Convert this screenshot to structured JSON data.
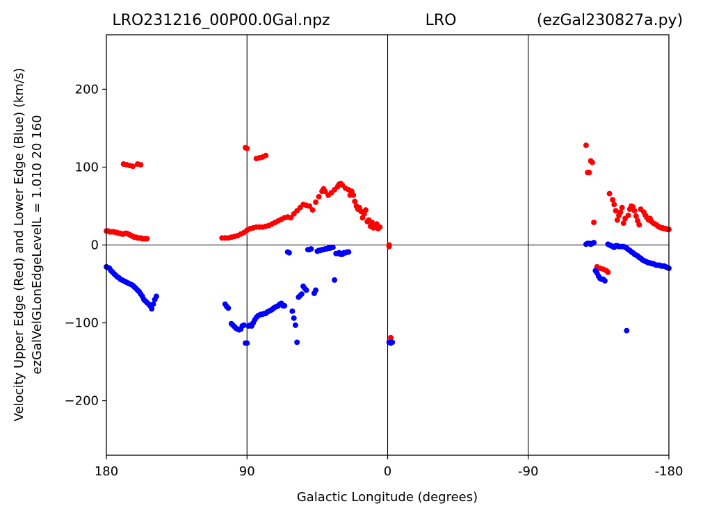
{
  "chart_data": {
    "type": "scatter",
    "title_parts": [
      "LRO231216_00P00.0Gal.npz",
      "LRO",
      "(ezGal230827a.py)"
    ],
    "xlabel": "Galactic Longitude (degrees)",
    "ylabel_lines": [
      "Velocity Upper Edge (Red) and Lower Edge (Blue)  (km/s)",
      "ezGalVelGLonEdgeLevelL = 1.010  20  160"
    ],
    "xlim": [
      180,
      -180
    ],
    "ylim": [
      -270,
      270
    ],
    "xticks": [
      180,
      90,
      0,
      -90,
      -180
    ],
    "xtick_labels": [
      "180",
      "90",
      "0",
      "-90",
      "-180"
    ],
    "yticks": [
      200,
      100,
      0,
      -100,
      -200
    ],
    "ytick_labels": [
      "200",
      "100",
      "0",
      "−100",
      "−200"
    ],
    "vlines": [
      90,
      0,
      -90
    ],
    "hlines": [
      0
    ],
    "grid": false,
    "colors": {
      "upper": "#ff0000",
      "lower": "#0000ff"
    },
    "series": [
      {
        "color": "#ff0000",
        "points": [
          [
            180,
            18
          ],
          [
            179,
            18
          ],
          [
            178,
            17
          ],
          [
            177,
            17
          ],
          [
            176,
            17
          ],
          [
            175,
            17
          ],
          [
            174,
            16
          ],
          [
            173,
            16
          ],
          [
            172,
            15
          ],
          [
            171,
            15
          ],
          [
            170,
            14
          ],
          [
            169,
            14
          ],
          [
            168,
            15
          ],
          [
            167,
            15
          ],
          [
            166,
            14
          ],
          [
            165,
            13
          ],
          [
            164,
            12
          ],
          [
            163,
            11
          ],
          [
            162,
            10
          ],
          [
            161,
            10
          ],
          [
            160,
            9
          ],
          [
            159,
            9
          ],
          [
            158,
            9
          ],
          [
            157,
            8
          ],
          [
            156,
            8
          ],
          [
            155,
            8
          ],
          [
            154,
            8
          ],
          [
            169,
            104
          ],
          [
            167,
            103
          ],
          [
            165,
            102
          ],
          [
            163,
            101
          ],
          [
            160,
            104
          ],
          [
            158,
            103
          ],
          [
            106,
            9
          ],
          [
            104,
            9
          ],
          [
            102,
            9
          ],
          [
            100,
            10
          ],
          [
            98,
            11
          ],
          [
            96,
            12
          ],
          [
            94,
            14
          ],
          [
            92,
            16
          ],
          [
            90,
            19
          ],
          [
            88,
            21
          ],
          [
            86,
            22
          ],
          [
            84,
            23
          ],
          [
            82,
            23
          ],
          [
            91,
            125
          ],
          [
            90,
            124
          ],
          [
            84,
            111
          ],
          [
            82,
            112
          ],
          [
            80,
            113
          ],
          [
            78,
            115
          ],
          [
            80,
            23
          ],
          [
            78,
            24
          ],
          [
            76,
            25
          ],
          [
            74,
            27
          ],
          [
            72,
            29
          ],
          [
            70,
            31
          ],
          [
            68,
            33
          ],
          [
            66,
            35
          ],
          [
            64,
            36
          ],
          [
            62,
            35
          ],
          [
            60,
            40
          ],
          [
            58,
            44
          ],
          [
            56,
            48
          ],
          [
            54,
            52
          ],
          [
            52,
            51
          ],
          [
            50,
            50
          ],
          [
            48,
            45
          ],
          [
            46,
            55
          ],
          [
            44,
            62
          ],
          [
            42,
            69
          ],
          [
            41,
            72
          ],
          [
            40,
            69
          ],
          [
            38,
            64
          ],
          [
            36,
            67
          ],
          [
            34,
            71
          ],
          [
            32,
            75
          ],
          [
            31,
            78
          ],
          [
            30,
            79
          ],
          [
            29,
            77
          ],
          [
            27,
            73
          ],
          [
            25,
            71
          ],
          [
            24,
            64
          ],
          [
            23,
            69
          ],
          [
            22,
            64
          ],
          [
            21,
            56
          ],
          [
            20,
            50
          ],
          [
            19,
            46
          ],
          [
            18,
            48
          ],
          [
            17,
            43
          ],
          [
            16,
            35
          ],
          [
            15,
            40
          ],
          [
            14,
            45
          ],
          [
            13,
            30
          ],
          [
            12,
            32
          ],
          [
            11,
            24
          ],
          [
            10,
            29
          ],
          [
            9,
            22
          ],
          [
            8,
            25
          ],
          [
            7,
            27
          ],
          [
            6,
            21
          ],
          [
            5,
            23
          ],
          [
            -1,
            0
          ],
          [
            -1,
            -2
          ],
          [
            -2,
            -119
          ],
          [
            -127,
            128
          ],
          [
            -128,
            93
          ],
          [
            -129,
            93
          ],
          [
            -130,
            108
          ],
          [
            -131,
            106
          ],
          [
            -132,
            29
          ],
          [
            -134,
            -28
          ],
          [
            -136,
            -30
          ],
          [
            -138,
            -31
          ],
          [
            -140,
            -33
          ],
          [
            -141,
            -35
          ],
          [
            -142,
            66
          ],
          [
            -144,
            58
          ],
          [
            -145,
            52
          ],
          [
            -146,
            44
          ],
          [
            -147,
            32
          ],
          [
            -148,
            38
          ],
          [
            -149,
            42
          ],
          [
            -150,
            48
          ],
          [
            -151,
            28
          ],
          [
            -152,
            34
          ],
          [
            -154,
            38
          ],
          [
            -155,
            46
          ],
          [
            -156,
            50
          ],
          [
            -157,
            49
          ],
          [
            -158,
            44
          ],
          [
            -159,
            37
          ],
          [
            -160,
            31
          ],
          [
            -161,
            26
          ],
          [
            -162,
            46
          ],
          [
            -164,
            42
          ],
          [
            -165,
            38
          ],
          [
            -166,
            35
          ],
          [
            -167,
            32
          ],
          [
            -168,
            34
          ],
          [
            -169,
            30
          ],
          [
            -170,
            28
          ],
          [
            -171,
            27
          ],
          [
            -172,
            26
          ],
          [
            -173,
            24
          ],
          [
            -174,
            23
          ],
          [
            -175,
            22
          ],
          [
            -176,
            22
          ],
          [
            -177,
            21
          ],
          [
            -178,
            21
          ],
          [
            -179,
            20
          ],
          [
            -180,
            20
          ]
        ]
      },
      {
        "color": "#0000ff",
        "points": [
          [
            180,
            -28
          ],
          [
            179,
            -29
          ],
          [
            178,
            -30
          ],
          [
            177,
            -33
          ],
          [
            176,
            -35
          ],
          [
            175,
            -37
          ],
          [
            174,
            -39
          ],
          [
            173,
            -41
          ],
          [
            172,
            -42
          ],
          [
            171,
            -44
          ],
          [
            170,
            -45
          ],
          [
            169,
            -46
          ],
          [
            168,
            -47
          ],
          [
            167,
            -48
          ],
          [
            166,
            -49
          ],
          [
            165,
            -50
          ],
          [
            164,
            -51
          ],
          [
            163,
            -52
          ],
          [
            162,
            -54
          ],
          [
            161,
            -56
          ],
          [
            160,
            -58
          ],
          [
            159,
            -60
          ],
          [
            158,
            -63
          ],
          [
            157,
            -66
          ],
          [
            156,
            -70
          ],
          [
            155,
            -72
          ],
          [
            154,
            -74
          ],
          [
            153,
            -76
          ],
          [
            152,
            -78
          ],
          [
            151,
            -82
          ],
          [
            150,
            -76
          ],
          [
            149,
            -70
          ],
          [
            148,
            -66
          ],
          [
            104,
            -76
          ],
          [
            103,
            -79
          ],
          [
            102,
            -81
          ],
          [
            100,
            -101
          ],
          [
            99,
            -103
          ],
          [
            98,
            -105
          ],
          [
            97,
            -107
          ],
          [
            96,
            -108
          ],
          [
            95,
            -109
          ],
          [
            94,
            -108
          ],
          [
            93,
            -104
          ],
          [
            92,
            -103
          ],
          [
            91,
            -126
          ],
          [
            90,
            -126
          ],
          [
            89,
            -104
          ],
          [
            88,
            -103
          ],
          [
            87,
            -104
          ],
          [
            86,
            -100
          ],
          [
            85,
            -96
          ],
          [
            84,
            -93
          ],
          [
            83,
            -91
          ],
          [
            82,
            -90
          ],
          [
            81,
            -89
          ],
          [
            80,
            -89
          ],
          [
            79,
            -88
          ],
          [
            78,
            -88
          ],
          [
            77,
            -86
          ],
          [
            76,
            -85
          ],
          [
            75,
            -84
          ],
          [
            74,
            -83
          ],
          [
            73,
            -81
          ],
          [
            72,
            -80
          ],
          [
            71,
            -79
          ],
          [
            70,
            -78
          ],
          [
            69,
            -76
          ],
          [
            68,
            -75
          ],
          [
            67,
            -78
          ],
          [
            66,
            -78
          ],
          [
            64,
            -9
          ],
          [
            63,
            -10
          ],
          [
            61,
            -85
          ],
          [
            60,
            -94
          ],
          [
            59,
            -103
          ],
          [
            58,
            -125
          ],
          [
            57,
            -67
          ],
          [
            56,
            -65
          ],
          [
            55,
            -63
          ],
          [
            54,
            -53
          ],
          [
            53,
            -56
          ],
          [
            52,
            -58
          ],
          [
            51,
            -6
          ],
          [
            50,
            -6
          ],
          [
            49,
            -5
          ],
          [
            47,
            -62
          ],
          [
            46,
            -58
          ],
          [
            45,
            -8
          ],
          [
            44,
            -7
          ],
          [
            43,
            -7
          ],
          [
            42,
            -6
          ],
          [
            41,
            -6
          ],
          [
            40,
            -5
          ],
          [
            39,
            -5
          ],
          [
            38,
            -4
          ],
          [
            37,
            -4
          ],
          [
            36,
            -3
          ],
          [
            35,
            -3
          ],
          [
            34,
            -45
          ],
          [
            33,
            -11
          ],
          [
            32,
            -11
          ],
          [
            31,
            -10
          ],
          [
            30,
            -12
          ],
          [
            29,
            -12
          ],
          [
            28,
            -10
          ],
          [
            27,
            -10
          ],
          [
            26,
            -9
          ],
          [
            25,
            -9
          ],
          [
            -1,
            -125
          ],
          [
            -2,
            -126
          ],
          [
            -3,
            -125
          ],
          [
            -127,
            1
          ],
          [
            -128,
            2
          ],
          [
            -129,
            2
          ],
          [
            -130,
            1
          ],
          [
            -131,
            2
          ],
          [
            -132,
            3
          ],
          [
            -133,
            -33
          ],
          [
            -134,
            -36
          ],
          [
            -135,
            -40
          ],
          [
            -136,
            -43
          ],
          [
            -137,
            -44
          ],
          [
            -138,
            -44
          ],
          [
            -139,
            -46
          ],
          [
            -141,
            1
          ],
          [
            -142,
            0
          ],
          [
            -143,
            -1
          ],
          [
            -144,
            -2
          ],
          [
            -145,
            -3
          ],
          [
            -146,
            -1
          ],
          [
            -147,
            -1
          ],
          [
            -148,
            -2
          ],
          [
            -149,
            -2
          ],
          [
            -150,
            -2
          ],
          [
            -151,
            -2
          ],
          [
            -152,
            -3
          ],
          [
            -153,
            -4
          ],
          [
            -154,
            -6
          ],
          [
            -155,
            -7
          ],
          [
            -156,
            -9
          ],
          [
            -157,
            -10
          ],
          [
            -158,
            -12
          ],
          [
            -159,
            -13
          ],
          [
            -160,
            -14
          ],
          [
            -161,
            -16
          ],
          [
            -162,
            -17
          ],
          [
            -163,
            -19
          ],
          [
            -164,
            -20
          ],
          [
            -165,
            -21
          ],
          [
            -166,
            -22
          ],
          [
            -167,
            -23
          ],
          [
            -168,
            -23
          ],
          [
            -169,
            -24
          ],
          [
            -170,
            -24
          ],
          [
            -171,
            -25
          ],
          [
            -172,
            -26
          ],
          [
            -173,
            -26
          ],
          [
            -174,
            -26
          ],
          [
            -175,
            -27
          ],
          [
            -176,
            -27
          ],
          [
            -177,
            -27
          ],
          [
            -178,
            -28
          ],
          [
            -179,
            -29
          ],
          [
            -180,
            -30
          ],
          [
            -153,
            -110
          ]
        ]
      }
    ]
  }
}
